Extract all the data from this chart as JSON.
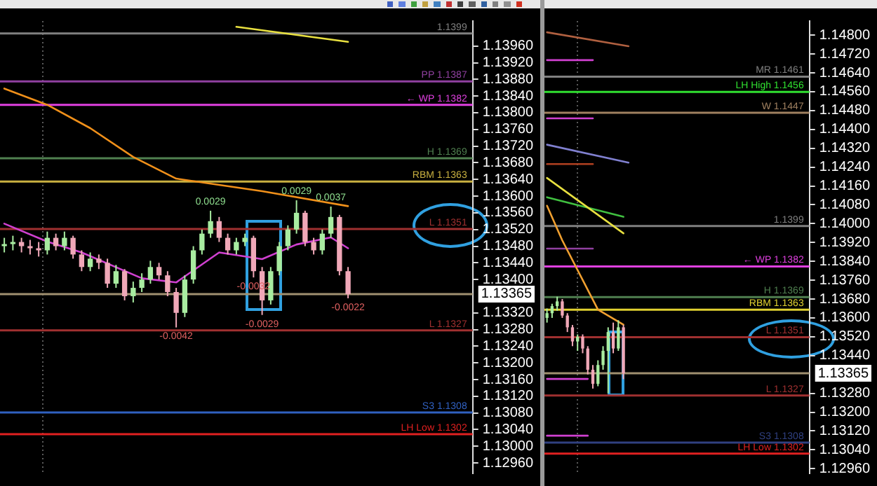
{
  "chart_data": [
    {
      "type": "candlestick",
      "tick_labels": "y",
      "grid": false,
      "ylim": [
        1.12935,
        1.1402
      ],
      "categories": [
        null,
        null,
        null,
        null,
        null,
        null,
        null,
        null,
        null,
        null,
        null,
        null,
        null,
        null,
        null,
        null,
        null,
        null,
        null,
        null,
        null,
        null,
        null,
        null,
        null,
        null,
        null,
        null,
        null,
        null,
        null,
        null,
        null,
        null,
        null,
        null,
        null,
        null,
        null,
        null,
        null,
        null,
        null,
        null,
        null,
        null,
        null,
        null,
        null,
        null,
        null,
        null,
        null,
        null,
        null
      ],
      "ohlc": [
        [
          1.1348,
          1.135,
          1.13465,
          1.13485
        ],
        [
          1.13485,
          1.13505,
          1.1347,
          1.1349
        ],
        [
          1.1349,
          1.135,
          1.13465,
          1.1348
        ],
        [
          1.1348,
          1.13495,
          1.1346,
          1.13475
        ],
        [
          1.13475,
          1.1349,
          1.13455,
          1.1347
        ],
        [
          1.1347,
          1.13515,
          1.1346,
          1.135
        ],
        [
          1.135,
          1.1351,
          1.1347,
          1.1348
        ],
        [
          1.1348,
          1.13515,
          1.1347,
          1.135
        ],
        [
          1.135,
          1.13505,
          1.1345,
          1.1346
        ],
        [
          1.1346,
          1.1347,
          1.1342,
          1.1343
        ],
        [
          1.1343,
          1.13465,
          1.1342,
          1.1345
        ],
        [
          1.1345,
          1.1346,
          1.13425,
          1.1344
        ],
        [
          1.1344,
          1.1345,
          1.1338,
          1.1339
        ],
        [
          1.1339,
          1.13435,
          1.1338,
          1.1342
        ],
        [
          1.1342,
          1.13425,
          1.1335,
          1.1336
        ],
        [
          1.1336,
          1.13395,
          1.13345,
          1.1338
        ],
        [
          1.1338,
          1.13415,
          1.1337,
          1.134
        ],
        [
          1.134,
          1.13445,
          1.1339,
          1.1343
        ],
        [
          1.1343,
          1.1344,
          1.134,
          1.1341
        ],
        [
          1.1341,
          1.1342,
          1.1336,
          1.1337
        ],
        [
          1.1337,
          1.1338,
          1.13285,
          1.1332
        ],
        [
          1.1332,
          1.1341,
          1.1331,
          1.134
        ],
        [
          1.134,
          1.1348,
          1.1339,
          1.1347
        ],
        [
          1.1347,
          1.1352,
          1.1346,
          1.1351
        ],
        [
          1.1351,
          1.13565,
          1.135,
          1.1354
        ],
        [
          1.1354,
          1.1355,
          1.1349,
          1.135
        ],
        [
          1.135,
          1.1351,
          1.1346,
          1.1347
        ],
        [
          1.1347,
          1.135,
          1.1346,
          1.1349
        ],
        [
          1.1349,
          1.1351,
          1.1348,
          1.135
        ],
        [
          1.135,
          1.13505,
          1.13405,
          1.1342
        ],
        [
          1.1342,
          1.1343,
          1.13315,
          1.1335
        ],
        [
          1.1335,
          1.1343,
          1.1334,
          1.1342
        ],
        [
          1.1342,
          1.1349,
          1.1341,
          1.1348
        ],
        [
          1.1348,
          1.1353,
          1.1347,
          1.1352
        ],
        [
          1.1352,
          1.1359,
          1.1351,
          1.1356
        ],
        [
          1.1356,
          1.13565,
          1.1348,
          1.1349
        ],
        [
          1.1349,
          1.135,
          1.1346,
          1.1347
        ],
        [
          1.1347,
          1.1352,
          1.1346,
          1.1351
        ],
        [
          1.1351,
          1.13575,
          1.135,
          1.1355
        ],
        [
          1.1355,
          1.13555,
          1.1341,
          1.1342
        ],
        [
          1.1342,
          1.1343,
          1.13355,
          1.13365
        ],
        null,
        null,
        null,
        null,
        null,
        null,
        null,
        null,
        null,
        null,
        null,
        null,
        null,
        null
      ],
      "series": [
        {
          "type": "line",
          "color": "#f0901a",
          "values": [
            1.13858,
            null,
            null,
            null,
            null,
            1.13819,
            null,
            null,
            null,
            null,
            1.13763,
            null,
            null,
            null,
            null,
            1.13694,
            null,
            null,
            null,
            null,
            1.13642,
            null,
            null,
            null,
            null,
            null,
            null,
            null,
            null,
            null,
            1.13612,
            null,
            null,
            null,
            null,
            null,
            null,
            null,
            null,
            null,
            1.13576,
            null,
            null,
            null,
            null,
            null,
            null,
            null,
            null,
            null,
            null,
            null,
            null,
            null,
            null
          ]
        },
        {
          "type": "line",
          "color": "#e8e040",
          "values": [
            null,
            null,
            null,
            null,
            null,
            null,
            null,
            null,
            null,
            null,
            null,
            null,
            null,
            null,
            null,
            null,
            null,
            null,
            null,
            null,
            null,
            null,
            null,
            null,
            null,
            null,
            null,
            1.14006,
            null,
            null,
            null,
            null,
            null,
            null,
            null,
            null,
            null,
            null,
            null,
            null,
            1.1397,
            null,
            null,
            null,
            null,
            null,
            null,
            null,
            null,
            null,
            null,
            null,
            null,
            null,
            null
          ]
        },
        {
          "type": "line",
          "color": "#d040d0",
          "values": [
            1.13534,
            null,
            null,
            null,
            null,
            1.13491,
            null,
            null,
            null,
            1.13465,
            null,
            null,
            null,
            null,
            null,
            null,
            1.13403,
            null,
            null,
            null,
            1.13393,
            null,
            null,
            null,
            null,
            1.13465,
            null,
            null,
            null,
            null,
            1.13449,
            null,
            null,
            null,
            1.13484,
            null,
            null,
            null,
            1.13501,
            null,
            1.13475,
            null,
            null,
            null,
            null,
            null,
            null,
            null,
            null,
            null,
            null,
            null,
            null,
            null,
            null
          ]
        }
      ],
      "ref_lines": [
        {
          "axis": "y",
          "value": 1.1399,
          "label": "1.1399",
          "color": "#808080"
        },
        {
          "axis": "y",
          "value": 1.13875,
          "label": "PP 1.1387",
          "color": "#9040a0"
        },
        {
          "axis": "y",
          "value": 1.13819,
          "label": "← WP 1.1382",
          "color": "#e040e0"
        },
        {
          "axis": "y",
          "value": 1.13691,
          "label": "H 1.1369",
          "color": "#508050"
        },
        {
          "axis": "y",
          "value": 1.13635,
          "label": "RBM 1.1363",
          "color": "#c8b040"
        },
        {
          "axis": "y",
          "value": 1.13521,
          "label": "L 1.1351",
          "color": "#a03030"
        },
        {
          "axis": "y",
          "value": 1.13365,
          "label": "1.13365",
          "color": "#a09070"
        },
        {
          "axis": "y",
          "value": 1.13278,
          "label": "L 1.1327",
          "color": "#a03030"
        },
        {
          "axis": "y",
          "value": 1.13081,
          "label": "S3 1.1308",
          "color": "#3060c0"
        },
        {
          "axis": "y",
          "value": 1.13029,
          "label": "LH Low 1.1302",
          "color": "#e02020"
        }
      ],
      "annotations": [
        {
          "text": "0.0029",
          "y": 1.13565
        },
        {
          "text": "0.0029",
          "y": 1.1359
        },
        {
          "text": "0.0037",
          "y": 1.13575
        },
        {
          "text": "-0.0042",
          "y": 1.13285
        },
        {
          "text": "-0.0029",
          "y": 1.13315
        },
        {
          "text": "-0.0032",
          "y": 1.13405
        },
        {
          "text": "-0.0022",
          "y": 1.13355
        }
      ],
      "yticks": [
        {
          "value": 1.1296,
          "label": "1.12960"
        },
        {
          "value": 1.13,
          "label": "1.13000"
        },
        {
          "value": 1.1304,
          "label": "1.13040"
        },
        {
          "value": 1.1308,
          "label": "1.13080"
        },
        {
          "value": 1.1312,
          "label": "1.13120"
        },
        {
          "value": 1.1316,
          "label": "1.13160"
        },
        {
          "value": 1.132,
          "label": "1.13200"
        },
        {
          "value": 1.1324,
          "label": "1.13240"
        },
        {
          "value": 1.1328,
          "label": "1.13280"
        },
        {
          "value": 1.1332,
          "label": "1.13320"
        },
        {
          "value": 1.134,
          "label": "1.13400"
        },
        {
          "value": 1.1344,
          "label": "1.13440"
        },
        {
          "value": 1.1348,
          "label": "1.13480"
        },
        {
          "value": 1.1352,
          "label": "1.13520"
        },
        {
          "value": 1.1356,
          "label": "1.13560"
        },
        {
          "value": 1.136,
          "label": "1.13600"
        },
        {
          "value": 1.1364,
          "label": "1.13640"
        },
        {
          "value": 1.1368,
          "label": "1.13680"
        },
        {
          "value": 1.1372,
          "label": "1.13720"
        },
        {
          "value": 1.1376,
          "label": "1.13760"
        },
        {
          "value": 1.138,
          "label": "1.13800"
        },
        {
          "value": 1.1384,
          "label": "1.13840"
        },
        {
          "value": 1.1388,
          "label": "1.13880"
        },
        {
          "value": 1.1392,
          "label": "1.13920"
        },
        {
          "value": 1.1396,
          "label": "1.13960"
        }
      ]
    },
    {
      "type": "candlestick",
      "tick_labels": "y",
      "grid": false,
      "ylim": [
        1.1294,
        1.1486
      ],
      "categories": [
        null,
        null,
        null,
        null,
        null,
        null,
        null,
        null,
        null,
        null,
        null,
        null,
        null,
        null,
        null,
        null,
        null,
        null,
        null,
        null,
        null,
        null,
        null,
        null,
        null,
        null,
        null,
        null,
        null,
        null,
        null,
        null,
        null,
        null,
        null,
        null,
        null,
        null,
        null,
        null,
        null,
        null,
        null,
        null,
        null,
        null,
        null,
        null,
        null,
        null,
        null,
        null
      ],
      "ohlc": [
        [
          1.136,
          1.1364,
          1.1358,
          1.1362
        ],
        [
          1.1362,
          1.1366,
          1.136,
          1.1365
        ],
        [
          1.1365,
          1.1369,
          1.1363,
          1.1367
        ],
        [
          1.1367,
          1.1368,
          1.136,
          1.1361
        ],
        [
          1.1361,
          1.1362,
          1.1354,
          1.1356
        ],
        [
          1.1356,
          1.1357,
          1.1348,
          1.135
        ],
        [
          1.135,
          1.1353,
          1.1346,
          1.1352
        ],
        [
          1.1352,
          1.1353,
          1.1345,
          1.1347
        ],
        [
          1.1347,
          1.1348,
          1.1336,
          1.1338
        ],
        [
          1.1338,
          1.134,
          1.133,
          1.1332
        ],
        [
          1.1332,
          1.1342,
          1.1331,
          1.134
        ],
        [
          1.134,
          1.1348,
          1.1338,
          1.1346
        ],
        [
          1.1346,
          1.1356,
          1.1328,
          1.1354
        ],
        [
          1.1354,
          1.1358,
          1.1345,
          1.1347
        ],
        [
          1.1347,
          1.1359,
          1.1346,
          1.1356
        ],
        [
          1.1356,
          1.1357,
          1.1334,
          1.13365
        ],
        null,
        null,
        null,
        null,
        null,
        null,
        null,
        null,
        null,
        null,
        null,
        null,
        null,
        null,
        null,
        null,
        null,
        null,
        null,
        null,
        null,
        null,
        null,
        null,
        null,
        null,
        null,
        null,
        null,
        null,
        null,
        null,
        null,
        null,
        null,
        null
      ],
      "series": [
        {
          "type": "line",
          "color": "#b06040",
          "values": [
            1.14812,
            null,
            null,
            null,
            null,
            null,
            null,
            null,
            null,
            null,
            null,
            null,
            null,
            null,
            null,
            null,
            1.14753,
            null,
            null,
            null,
            null,
            null,
            null,
            null,
            null,
            null,
            null,
            null,
            null,
            null,
            null,
            null,
            null,
            null,
            null,
            null,
            null,
            null,
            null,
            null,
            null,
            null,
            null,
            null,
            null,
            null,
            null,
            null,
            null,
            null,
            null,
            null
          ]
        },
        {
          "type": "line",
          "color": "#d040d0",
          "values": [
            1.14694,
            null,
            null,
            null,
            null,
            null,
            null,
            null,
            null,
            1.14694,
            null,
            null,
            null,
            null,
            null,
            null,
            null,
            null,
            null,
            null,
            null,
            null,
            null,
            null,
            null,
            null,
            null,
            null,
            null,
            null,
            null,
            null,
            null,
            null,
            null,
            null,
            null,
            null,
            null,
            null,
            null,
            null,
            null,
            null,
            null,
            null,
            null,
            null,
            null,
            null,
            null,
            null
          ]
        },
        {
          "type": "line",
          "color": "#d040d0",
          "values": [
            1.14447,
            null,
            null,
            null,
            null,
            null,
            null,
            null,
            null,
            1.14447,
            null,
            null,
            null,
            null,
            null,
            null,
            null,
            null,
            null,
            null,
            null,
            null,
            null,
            null,
            null,
            null,
            null,
            null,
            null,
            null,
            null,
            null,
            null,
            null,
            null,
            null,
            null,
            null,
            null,
            null,
            null,
            null,
            null,
            null,
            null,
            null,
            null,
            null,
            null,
            null,
            null,
            null
          ]
        },
        {
          "type": "line",
          "color": "#8080d0",
          "values": [
            1.14335,
            null,
            null,
            null,
            null,
            null,
            null,
            null,
            null,
            null,
            null,
            null,
            null,
            null,
            null,
            null,
            1.14259,
            null,
            null,
            null,
            null,
            null,
            null,
            null,
            null,
            null,
            null,
            null,
            null,
            null,
            null,
            null,
            null,
            null,
            null,
            null,
            null,
            null,
            null,
            null,
            null,
            null,
            null,
            null,
            null,
            null,
            null,
            null,
            null,
            null,
            null,
            null
          ]
        },
        {
          "type": "line",
          "color": "#b04020",
          "values": [
            1.14253,
            null,
            null,
            null,
            null,
            null,
            null,
            null,
            null,
            1.14253,
            null,
            null,
            null,
            null,
            null,
            null,
            null,
            null,
            null,
            null,
            null,
            null,
            null,
            null,
            null,
            null,
            null,
            null,
            null,
            null,
            null,
            null,
            null,
            null,
            null,
            null,
            null,
            null,
            null,
            null,
            null,
            null,
            null,
            null,
            null,
            null,
            null,
            null,
            null,
            null,
            null,
            null
          ]
        },
        {
          "type": "line",
          "color": "#e8e040",
          "values": [
            1.14194,
            null,
            null,
            null,
            null,
            null,
            null,
            null,
            null,
            null,
            null,
            null,
            null,
            null,
            null,
            1.13959,
            null,
            null,
            null,
            null,
            null,
            null,
            null,
            null,
            null,
            null,
            null,
            null,
            null,
            null,
            null,
            null,
            null,
            null,
            null,
            null,
            null,
            null,
            null,
            null,
            null,
            null,
            null,
            null,
            null,
            null,
            null,
            null,
            null,
            null,
            null,
            null
          ]
        },
        {
          "type": "line",
          "color": "#40c040",
          "values": [
            1.14112,
            null,
            null,
            null,
            null,
            null,
            null,
            null,
            null,
            null,
            null,
            null,
            null,
            null,
            null,
            1.14029,
            null,
            null,
            null,
            null,
            null,
            null,
            null,
            null,
            null,
            null,
            null,
            null,
            null,
            null,
            null,
            null,
            null,
            null,
            null,
            null,
            null,
            null,
            null,
            null,
            null,
            null,
            null,
            null,
            null,
            null,
            null,
            null,
            null,
            null,
            null,
            null
          ]
        },
        {
          "type": "line",
          "color": "#f0a030",
          "values": [
            1.14076,
            null,
            null,
            1.13929,
            null,
            null,
            null,
            null,
            null,
            null,
            1.13635,
            null,
            null,
            null,
            null,
            1.13571,
            null,
            null,
            null,
            null,
            null,
            null,
            null,
            null,
            null,
            null,
            null,
            null,
            null,
            null,
            null,
            null,
            null,
            null,
            null,
            null,
            null,
            null,
            null,
            null,
            null,
            null,
            null,
            null,
            null,
            null,
            null,
            null,
            null,
            null,
            null,
            null
          ]
        },
        {
          "type": "line",
          "color": "#9040a0",
          "values": [
            1.13894,
            null,
            null,
            null,
            null,
            null,
            null,
            null,
            null,
            1.13894,
            null,
            null,
            null,
            null,
            null,
            null,
            null,
            null,
            null,
            null,
            null,
            null,
            null,
            null,
            null,
            null,
            null,
            null,
            null,
            null,
            null,
            null,
            null,
            null,
            null,
            null,
            null,
            null,
            null,
            null,
            null,
            null,
            null,
            null,
            null,
            null,
            null,
            null,
            null,
            null,
            null,
            null
          ]
        },
        {
          "type": "line",
          "color": "#d040d0",
          "values": [
            1.13341,
            null,
            null,
            null,
            null,
            null,
            null,
            null,
            1.13341,
            null,
            null,
            null,
            null,
            null,
            null,
            null,
            null,
            null,
            null,
            null,
            null,
            null,
            null,
            null,
            null,
            null,
            null,
            null,
            null,
            null,
            null,
            null,
            null,
            null,
            null,
            null,
            null,
            null,
            null,
            null,
            null,
            null,
            null,
            null,
            null,
            null,
            null,
            null,
            null,
            null,
            null,
            null
          ]
        },
        {
          "type": "line",
          "color": "#d040d0",
          "values": [
            1.131,
            null,
            null,
            null,
            null,
            null,
            null,
            null,
            1.131,
            null,
            null,
            null,
            null,
            null,
            null,
            null,
            null,
            null,
            null,
            null,
            null,
            null,
            null,
            null,
            null,
            null,
            null,
            null,
            null,
            null,
            null,
            null,
            null,
            null,
            null,
            null,
            null,
            null,
            null,
            null,
            null,
            null,
            null,
            null,
            null,
            null,
            null,
            null,
            null,
            null,
            null,
            null
          ]
        }
      ],
      "ref_lines": [
        {
          "axis": "y",
          "value": 1.14624,
          "label": "MR 1.1461",
          "color": "#808080"
        },
        {
          "axis": "y",
          "value": 1.14559,
          "label": "LH High 1.1456",
          "color": "#30e030"
        },
        {
          "axis": "y",
          "value": 1.14471,
          "label": "W 1.1447",
          "color": "#a08060"
        },
        {
          "axis": "y",
          "value": 1.1399,
          "label": "1.1399",
          "color": "#808080"
        },
        {
          "axis": "y",
          "value": 1.13818,
          "label": "← WP 1.1382",
          "color": "#e040e0"
        },
        {
          "axis": "y",
          "value": 1.13688,
          "label": "H 1.1369",
          "color": "#508050"
        },
        {
          "axis": "y",
          "value": 1.13635,
          "label": "RBM 1.1363",
          "color": "#e0d030"
        },
        {
          "axis": "y",
          "value": 1.13518,
          "label": "L 1.1351",
          "color": "#a03030"
        },
        {
          "axis": "y",
          "value": 1.13365,
          "label": "1.13365",
          "color": "#a09070"
        },
        {
          "axis": "y",
          "value": 1.13271,
          "label": "L 1.1327",
          "color": "#a03030"
        },
        {
          "axis": "y",
          "value": 1.13071,
          "label": "S3 1.1308",
          "color": "#304080"
        },
        {
          "axis": "y",
          "value": 1.13024,
          "label": "LH Low 1.1302",
          "color": "#e02020"
        }
      ],
      "yticks": [
        {
          "value": 1.1296,
          "label": "1.12960"
        },
        {
          "value": 1.1304,
          "label": "1.13040"
        },
        {
          "value": 1.1312,
          "label": "1.13120"
        },
        {
          "value": 1.132,
          "label": "1.13200"
        },
        {
          "value": 1.1328,
          "label": "1.13280"
        },
        {
          "value": 1.1344,
          "label": "1.13440"
        },
        {
          "value": 1.1352,
          "label": "1.13520"
        },
        {
          "value": 1.136,
          "label": "1.13600"
        },
        {
          "value": 1.1368,
          "label": "1.13680"
        },
        {
          "value": 1.1376,
          "label": "1.13760"
        },
        {
          "value": 1.1384,
          "label": "1.13840"
        },
        {
          "value": 1.1392,
          "label": "1.13920"
        },
        {
          "value": 1.14,
          "label": "1.14000"
        },
        {
          "value": 1.1408,
          "label": "1.14080"
        },
        {
          "value": 1.1416,
          "label": "1.14160"
        },
        {
          "value": 1.1424,
          "label": "1.14240"
        },
        {
          "value": 1.1432,
          "label": "1.14320"
        },
        {
          "value": 1.144,
          "label": "1.14400"
        },
        {
          "value": 1.1448,
          "label": "1.14480"
        },
        {
          "value": 1.1456,
          "label": "1.14560"
        },
        {
          "value": 1.1464,
          "label": "1.14640"
        },
        {
          "value": 1.1472,
          "label": "1.14720"
        },
        {
          "value": 1.148,
          "label": "1.14800"
        }
      ]
    }
  ]
}
